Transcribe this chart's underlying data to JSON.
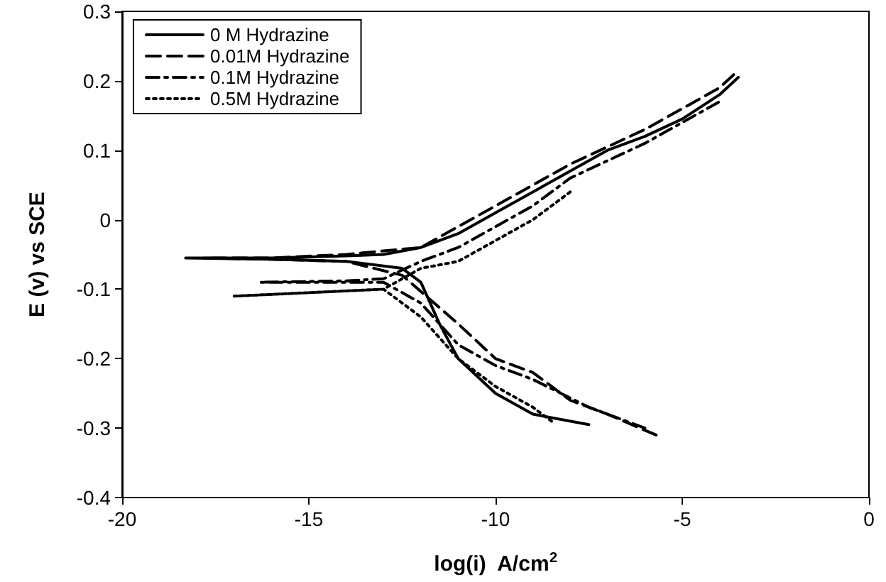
{
  "chart_data": {
    "type": "line",
    "xlabel": "log(i)  A/cm$^{2}$",
    "ylabel": "E (v) vs SCE",
    "xlim": [
      -20,
      0
    ],
    "xticks": [
      -20,
      -15,
      -10,
      -5,
      0
    ],
    "ylim": [
      -0.4,
      0.3
    ],
    "yticks": [
      -0.4,
      -0.3,
      -0.2,
      -0.1,
      0,
      0.1,
      0.2,
      0.3
    ],
    "grid": false,
    "legend": "top left",
    "marker": "none",
    "series": [
      {
        "name": "0 M Hydrazine",
        "color": "#000000",
        "line_style": "solid",
        "x": [
          -7.5,
          -9,
          -10,
          -11,
          -11.5,
          -12,
          -12.5,
          -14,
          -16,
          -18.3,
          -16,
          -14,
          -13,
          -12,
          -11,
          -10,
          -9,
          -8,
          -7,
          -6,
          -5,
          -4,
          -3.5
        ],
        "values": [
          -0.295,
          -0.28,
          -0.25,
          -0.2,
          -0.15,
          -0.09,
          -0.07,
          -0.06,
          -0.057,
          -0.055,
          -0.055,
          -0.052,
          -0.05,
          -0.04,
          -0.02,
          0.01,
          0.04,
          0.07,
          0.1,
          0.12,
          0.145,
          0.18,
          0.205
        ]
      },
      {
        "name": "0.01M Hydrazine",
        "color": "#000000",
        "line_style": "dashed",
        "x": [
          -5.7,
          -7,
          -8,
          -9,
          -10,
          -11,
          -12.5,
          -14,
          -16,
          -17.8,
          -16,
          -14,
          -12,
          -10,
          -8,
          -6,
          -4,
          -3.6
        ],
        "values": [
          -0.31,
          -0.28,
          -0.26,
          -0.22,
          -0.2,
          -0.15,
          -0.08,
          -0.06,
          -0.057,
          -0.055,
          -0.055,
          -0.05,
          -0.04,
          0.02,
          0.08,
          0.13,
          0.19,
          0.21
        ]
      },
      {
        "name": "0.1M Hydrazine",
        "color": "#000000",
        "line_style": "dashdot",
        "x": [
          -6,
          -7.5,
          -9,
          -10,
          -11,
          -12,
          -13,
          -14,
          -16.3,
          -14,
          -13,
          -12,
          -11,
          -10,
          -9,
          -8,
          -6,
          -4
        ],
        "values": [
          -0.3,
          -0.27,
          -0.23,
          -0.21,
          -0.18,
          -0.12,
          -0.09,
          -0.09,
          -0.09,
          -0.088,
          -0.085,
          -0.06,
          -0.04,
          -0.01,
          0.02,
          0.06,
          0.11,
          0.17
        ]
      },
      {
        "name": "0.5M Hydrazine",
        "color": "#000000",
        "line_style": "dotted",
        "x": [
          -8.5,
          -9,
          -10,
          -11,
          -12,
          -13,
          -15,
          -17,
          -15,
          -13,
          -12,
          -11,
          -10,
          -9,
          -8
        ],
        "values": [
          -0.29,
          -0.27,
          -0.24,
          -0.2,
          -0.14,
          -0.1,
          -0.105,
          -0.11,
          -0.105,
          -0.1,
          -0.07,
          -0.06,
          -0.03,
          0,
          0.04
        ]
      }
    ]
  }
}
